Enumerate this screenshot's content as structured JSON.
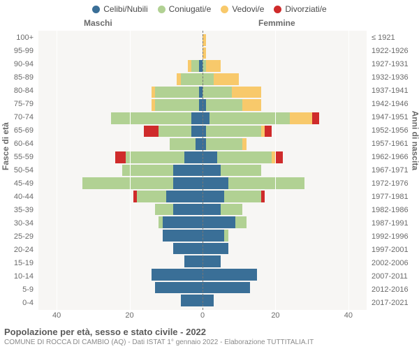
{
  "legend": [
    {
      "label": "Celibi/Nubili",
      "color": "#3a6f97"
    },
    {
      "label": "Coniugati/e",
      "color": "#b1d193"
    },
    {
      "label": "Vedovi/e",
      "color": "#f8c96b"
    },
    {
      "label": "Divorziati/e",
      "color": "#cf2b2b"
    }
  ],
  "header": {
    "male": "Maschi",
    "female": "Femmine"
  },
  "axis_titles": {
    "left": "Fasce di età",
    "right": "Anni di nascita"
  },
  "x_axis": {
    "max": 45,
    "ticks": [
      40,
      20,
      0,
      20,
      40
    ]
  },
  "colors": {
    "plot_bg": "#f7f6f4",
    "grid": "#ffffff",
    "center_dash": "#777777",
    "text": "#6a6a6a"
  },
  "title": "Popolazione per età, sesso e stato civile - 2022",
  "subtitle": "COMUNE DI ROCCA DI CAMBIO (AQ) - Dati ISTAT 1° gennaio 2022 - Elaborazione TUTTITALIA.IT",
  "rows": [
    {
      "age": "0-4",
      "birth": "2017-2021",
      "m": [
        6,
        0,
        0,
        0
      ],
      "f": [
        3,
        0,
        0,
        0
      ]
    },
    {
      "age": "5-9",
      "birth": "2012-2016",
      "m": [
        13,
        0,
        0,
        0
      ],
      "f": [
        13,
        0,
        0,
        0
      ]
    },
    {
      "age": "10-14",
      "birth": "2007-2011",
      "m": [
        14,
        0,
        0,
        0
      ],
      "f": [
        15,
        0,
        0,
        0
      ]
    },
    {
      "age": "15-19",
      "birth": "2002-2006",
      "m": [
        5,
        0,
        0,
        0
      ],
      "f": [
        5,
        0,
        0,
        0
      ]
    },
    {
      "age": "20-24",
      "birth": "1997-2001",
      "m": [
        8,
        0,
        0,
        0
      ],
      "f": [
        7,
        0,
        0,
        0
      ]
    },
    {
      "age": "25-29",
      "birth": "1992-1996",
      "m": [
        11,
        0,
        0,
        0
      ],
      "f": [
        6,
        1,
        0,
        0
      ]
    },
    {
      "age": "30-34",
      "birth": "1987-1991",
      "m": [
        11,
        1,
        0,
        0
      ],
      "f": [
        9,
        3,
        0,
        0
      ]
    },
    {
      "age": "35-39",
      "birth": "1982-1986",
      "m": [
        8,
        5,
        0,
        0
      ],
      "f": [
        5,
        6,
        0,
        0
      ]
    },
    {
      "age": "40-44",
      "birth": "1977-1981",
      "m": [
        10,
        8,
        0,
        1
      ],
      "f": [
        6,
        10,
        0,
        1
      ]
    },
    {
      "age": "45-49",
      "birth": "1972-1976",
      "m": [
        8,
        25,
        0,
        0
      ],
      "f": [
        7,
        21,
        0,
        0
      ]
    },
    {
      "age": "50-54",
      "birth": "1967-1971",
      "m": [
        8,
        14,
        0,
        0
      ],
      "f": [
        5,
        11,
        0,
        0
      ]
    },
    {
      "age": "55-59",
      "birth": "1962-1966",
      "m": [
        5,
        16,
        0,
        3
      ],
      "f": [
        4,
        15,
        1,
        2
      ]
    },
    {
      "age": "60-64",
      "birth": "1957-1961",
      "m": [
        2,
        7,
        0,
        0
      ],
      "f": [
        1,
        10,
        1,
        0
      ]
    },
    {
      "age": "65-69",
      "birth": "1952-1956",
      "m": [
        3,
        9,
        0,
        4
      ],
      "f": [
        1,
        15,
        1,
        2
      ]
    },
    {
      "age": "70-74",
      "birth": "1947-1951",
      "m": [
        3,
        22,
        0,
        0
      ],
      "f": [
        2,
        22,
        6,
        2
      ]
    },
    {
      "age": "75-79",
      "birth": "1942-1946",
      "m": [
        1,
        12,
        1,
        0
      ],
      "f": [
        1,
        10,
        5,
        0
      ]
    },
    {
      "age": "80-84",
      "birth": "1937-1941",
      "m": [
        1,
        12,
        1,
        0
      ],
      "f": [
        0,
        8,
        8,
        0
      ]
    },
    {
      "age": "85-89",
      "birth": "1932-1936",
      "m": [
        0,
        6,
        1,
        0
      ],
      "f": [
        0,
        3,
        7,
        0
      ]
    },
    {
      "age": "90-94",
      "birth": "1927-1931",
      "m": [
        1,
        2,
        1,
        0
      ],
      "f": [
        0,
        1,
        4,
        0
      ]
    },
    {
      "age": "95-99",
      "birth": "1922-1926",
      "m": [
        0,
        0,
        0,
        0
      ],
      "f": [
        0,
        0,
        1,
        0
      ]
    },
    {
      "age": "100+",
      "birth": "≤ 1921",
      "m": [
        0,
        0,
        0,
        0
      ],
      "f": [
        0,
        0,
        1,
        0
      ]
    }
  ]
}
